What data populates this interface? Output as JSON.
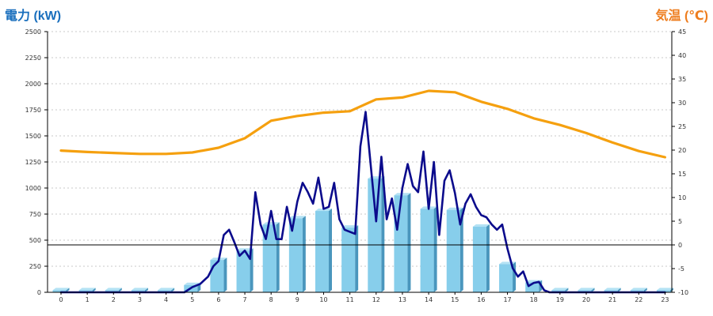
{
  "chart_data": {
    "type": "bar",
    "ylabel_left": "電力 (kW)",
    "ylabel_right": "気温 (℃)",
    "ylim_left": [
      0,
      2500
    ],
    "ylim_right": [
      -10,
      45
    ],
    "y_ticks_left": [
      "0",
      "250",
      "500",
      "750",
      "1000",
      "1250",
      "1500",
      "1750",
      "2000",
      "2250",
      "2500"
    ],
    "y_ticks_right": [
      "-10",
      "-5",
      "0",
      "5",
      "10",
      "15",
      "20",
      "25",
      "30",
      "35",
      "40",
      "45"
    ],
    "x_ticks": [
      "0",
      "1",
      "2",
      "3",
      "4",
      "5",
      "6",
      "7",
      "8",
      "9",
      "10",
      "11",
      "12",
      "13",
      "14",
      "15",
      "16",
      "17",
      "18",
      "19",
      "20",
      "21",
      "22",
      "23"
    ],
    "grid": true,
    "colors": {
      "bars": "#87ceeb",
      "bars_side": "#4a96bd",
      "power_line": "#0b0b8c",
      "temperature_line": "#f5a00f",
      "left_title": "#1a6fbd",
      "right_title": "#ee7d1e"
    },
    "series": [
      {
        "kind": "bar",
        "axis": "left",
        "x": [
          0,
          1,
          2,
          3,
          4,
          5,
          6,
          7,
          8,
          9,
          10,
          11,
          12,
          13,
          14,
          15,
          16,
          17,
          18,
          19,
          20,
          21,
          22,
          23
        ],
        "values": [
          20,
          20,
          20,
          20,
          20,
          70,
          310,
          400,
          650,
          710,
          780,
          620,
          1090,
          930,
          800,
          790,
          630,
          270,
          95,
          20,
          20,
          20,
          20,
          20
        ]
      },
      {
        "kind": "line",
        "axis": "left",
        "x": [
          0,
          1,
          2,
          3,
          4,
          4.7,
          5,
          5.3,
          5.6,
          5.8,
          6.0,
          6.2,
          6.4,
          6.6,
          6.8,
          7.0,
          7.2,
          7.4,
          7.6,
          7.8,
          8.0,
          8.2,
          8.4,
          8.6,
          8.8,
          9.0,
          9.2,
          9.4,
          9.6,
          9.8,
          10.0,
          10.2,
          10.4,
          10.6,
          10.8,
          11.0,
          11.2,
          11.4,
          11.6,
          11.8,
          12.0,
          12.2,
          12.4,
          12.6,
          12.8,
          13.0,
          13.2,
          13.4,
          13.6,
          13.8,
          14.0,
          14.2,
          14.4,
          14.6,
          14.8,
          15.0,
          15.2,
          15.4,
          15.6,
          15.8,
          16.0,
          16.2,
          16.4,
          16.6,
          16.8,
          17.0,
          17.2,
          17.4,
          17.6,
          17.8,
          18.0,
          18.2,
          18.4,
          18.6,
          19,
          20,
          21,
          22,
          23
        ],
        "values": [
          0,
          0,
          0,
          0,
          0,
          0,
          50,
          80,
          150,
          250,
          300,
          550,
          600,
          480,
          350,
          400,
          320,
          960,
          650,
          510,
          780,
          510,
          510,
          820,
          590,
          870,
          1050,
          960,
          850,
          1100,
          800,
          820,
          1050,
          700,
          600,
          580,
          560,
          1400,
          1730,
          1200,
          680,
          1300,
          700,
          900,
          600,
          1000,
          1230,
          1020,
          960,
          1350,
          800,
          1250,
          550,
          1070,
          1170,
          950,
          650,
          850,
          940,
          820,
          740,
          720,
          650,
          600,
          650,
          420,
          230,
          150,
          200,
          60,
          90,
          100,
          20,
          0,
          0,
          0,
          0,
          0,
          0
        ]
      },
      {
        "kind": "line",
        "axis": "right",
        "x": [
          0,
          1,
          2,
          3,
          4,
          5,
          6,
          7,
          8,
          9,
          10,
          11,
          12,
          13,
          14,
          15,
          16,
          17,
          18,
          19,
          20,
          21,
          22,
          23
        ],
        "values": [
          19.9,
          19.6,
          19.4,
          19.2,
          19.2,
          19.5,
          20.5,
          22.5,
          26.2,
          27.2,
          27.9,
          28.2,
          30.7,
          31.1,
          32.5,
          32.2,
          30.2,
          28.7,
          26.7,
          25.3,
          23.6,
          21.6,
          19.8,
          18.5
        ]
      }
    ]
  }
}
